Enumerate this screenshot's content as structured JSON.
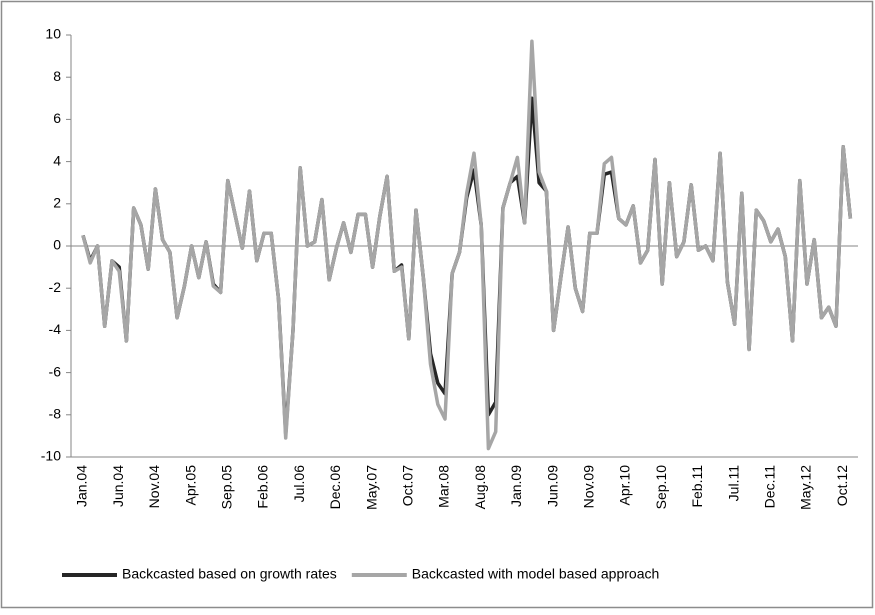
{
  "chart_data": {
    "type": "line",
    "categories": [
      "Jan.04",
      null,
      null,
      null,
      null,
      "Jun.04",
      null,
      null,
      null,
      null,
      "Nov.04",
      null,
      null,
      null,
      null,
      "Apr.05",
      null,
      null,
      null,
      null,
      "Sep.05",
      null,
      null,
      null,
      null,
      "Feb.06",
      null,
      null,
      null,
      null,
      "Jul.06",
      null,
      null,
      null,
      null,
      "Dec.06",
      null,
      null,
      null,
      null,
      "May.07",
      null,
      null,
      null,
      null,
      "Oct.07",
      null,
      null,
      null,
      null,
      "Mar.08",
      null,
      null,
      null,
      null,
      "Aug.08",
      null,
      null,
      null,
      null,
      "Jan.09",
      null,
      null,
      null,
      null,
      "Jun.09",
      null,
      null,
      null,
      null,
      "Nov.09",
      null,
      null,
      null,
      null,
      "Apr.10",
      null,
      null,
      null,
      null,
      "Sep.10",
      null,
      null,
      null,
      null,
      "Feb.11",
      null,
      null,
      null,
      null,
      "Jul.11",
      null,
      null,
      null,
      null,
      "Dec.11",
      null,
      null,
      null,
      null,
      "May.12",
      null,
      null,
      null,
      null,
      "Oct.12",
      null
    ],
    "series": [
      {
        "name": "Backcasted based on growth rates",
        "color": "#262626",
        "values": [
          0.5,
          -0.7,
          0,
          -3.8,
          -0.7,
          -1.0,
          -4.5,
          1.8,
          1.0,
          -1.1,
          2.7,
          0.3,
          -0.3,
          -3.4,
          -1.9,
          0,
          -1.5,
          0.2,
          -1.8,
          -2.2,
          3.1,
          1.5,
          -0.1,
          2.6,
          -0.7,
          0.6,
          0.6,
          -2.5,
          -8.9,
          -4,
          3.7,
          0,
          0.2,
          2.2,
          -1.6,
          -0.1,
          1.1,
          -0.3,
          1.5,
          1.5,
          -1,
          1.4,
          3.3,
          -1.2,
          -0.9,
          -4.4,
          1.7,
          -1.5,
          -5.1,
          -6.5,
          -7.0,
          -1.3,
          -0.3,
          2.3,
          3.6,
          1.0,
          -8.0,
          -7.4,
          1.8,
          3,
          3.3,
          1.1,
          7.0,
          3.0,
          2.6,
          -4,
          -1.5,
          0.9,
          -2,
          -3.1,
          0.6,
          0.6,
          3.4,
          3.5,
          1.3,
          1.0,
          1.9,
          -0.8,
          -0.2,
          4.1,
          -1.8,
          3.0,
          -0.5,
          0.2,
          2.9,
          -0.2,
          0,
          -0.7,
          4.4,
          -1.7,
          -3.7,
          2.5,
          -4.9,
          1.7,
          1.2,
          0.2,
          0.8,
          -0.5,
          -4.5,
          3.1,
          -1.8,
          0.3,
          -3.4,
          -2.9,
          -3.8,
          4.7,
          1.3
        ]
      },
      {
        "name": "Backcasted with model based approach",
        "color": "#a6a6a6",
        "values": [
          0.5,
          -0.8,
          0,
          -3.8,
          -0.7,
          -1.2,
          -4.5,
          1.8,
          1.0,
          -1.1,
          2.7,
          0.3,
          -0.3,
          -3.4,
          -1.9,
          0,
          -1.5,
          0.2,
          -1.9,
          -2.2,
          3.1,
          1.5,
          -0.1,
          2.6,
          -0.7,
          0.6,
          0.6,
          -2.5,
          -9.1,
          -4,
          3.7,
          0,
          0.2,
          2.2,
          -1.6,
          -0.1,
          1.1,
          -0.3,
          1.5,
          1.5,
          -1,
          1.4,
          3.3,
          -1.2,
          -1,
          -4.4,
          1.7,
          -1.5,
          -5.6,
          -7.5,
          -8.2,
          -1.3,
          -0.3,
          2.5,
          4.4,
          1.0,
          -9.6,
          -8.8,
          1.8,
          3,
          4.2,
          1.1,
          9.7,
          3.5,
          2.6,
          -4,
          -1.5,
          0.9,
          -2,
          -3.1,
          0.6,
          0.6,
          3.9,
          4.2,
          1.3,
          1.0,
          1.9,
          -0.8,
          -0.2,
          4.1,
          -1.8,
          3.0,
          -0.5,
          0.2,
          2.9,
          -0.2,
          0,
          -0.7,
          4.4,
          -1.7,
          -3.7,
          2.5,
          -4.9,
          1.7,
          1.2,
          0.2,
          0.8,
          -0.5,
          -4.5,
          3.1,
          -1.8,
          0.3,
          -3.4,
          -2.9,
          -3.8,
          4.7,
          1.3
        ]
      }
    ],
    "ylim": [
      -10,
      10
    ],
    "yticks": [
      -10,
      -8,
      -6,
      -4,
      -2,
      0,
      2,
      4,
      6,
      8,
      10
    ],
    "grid": false,
    "legend": "bottom"
  }
}
